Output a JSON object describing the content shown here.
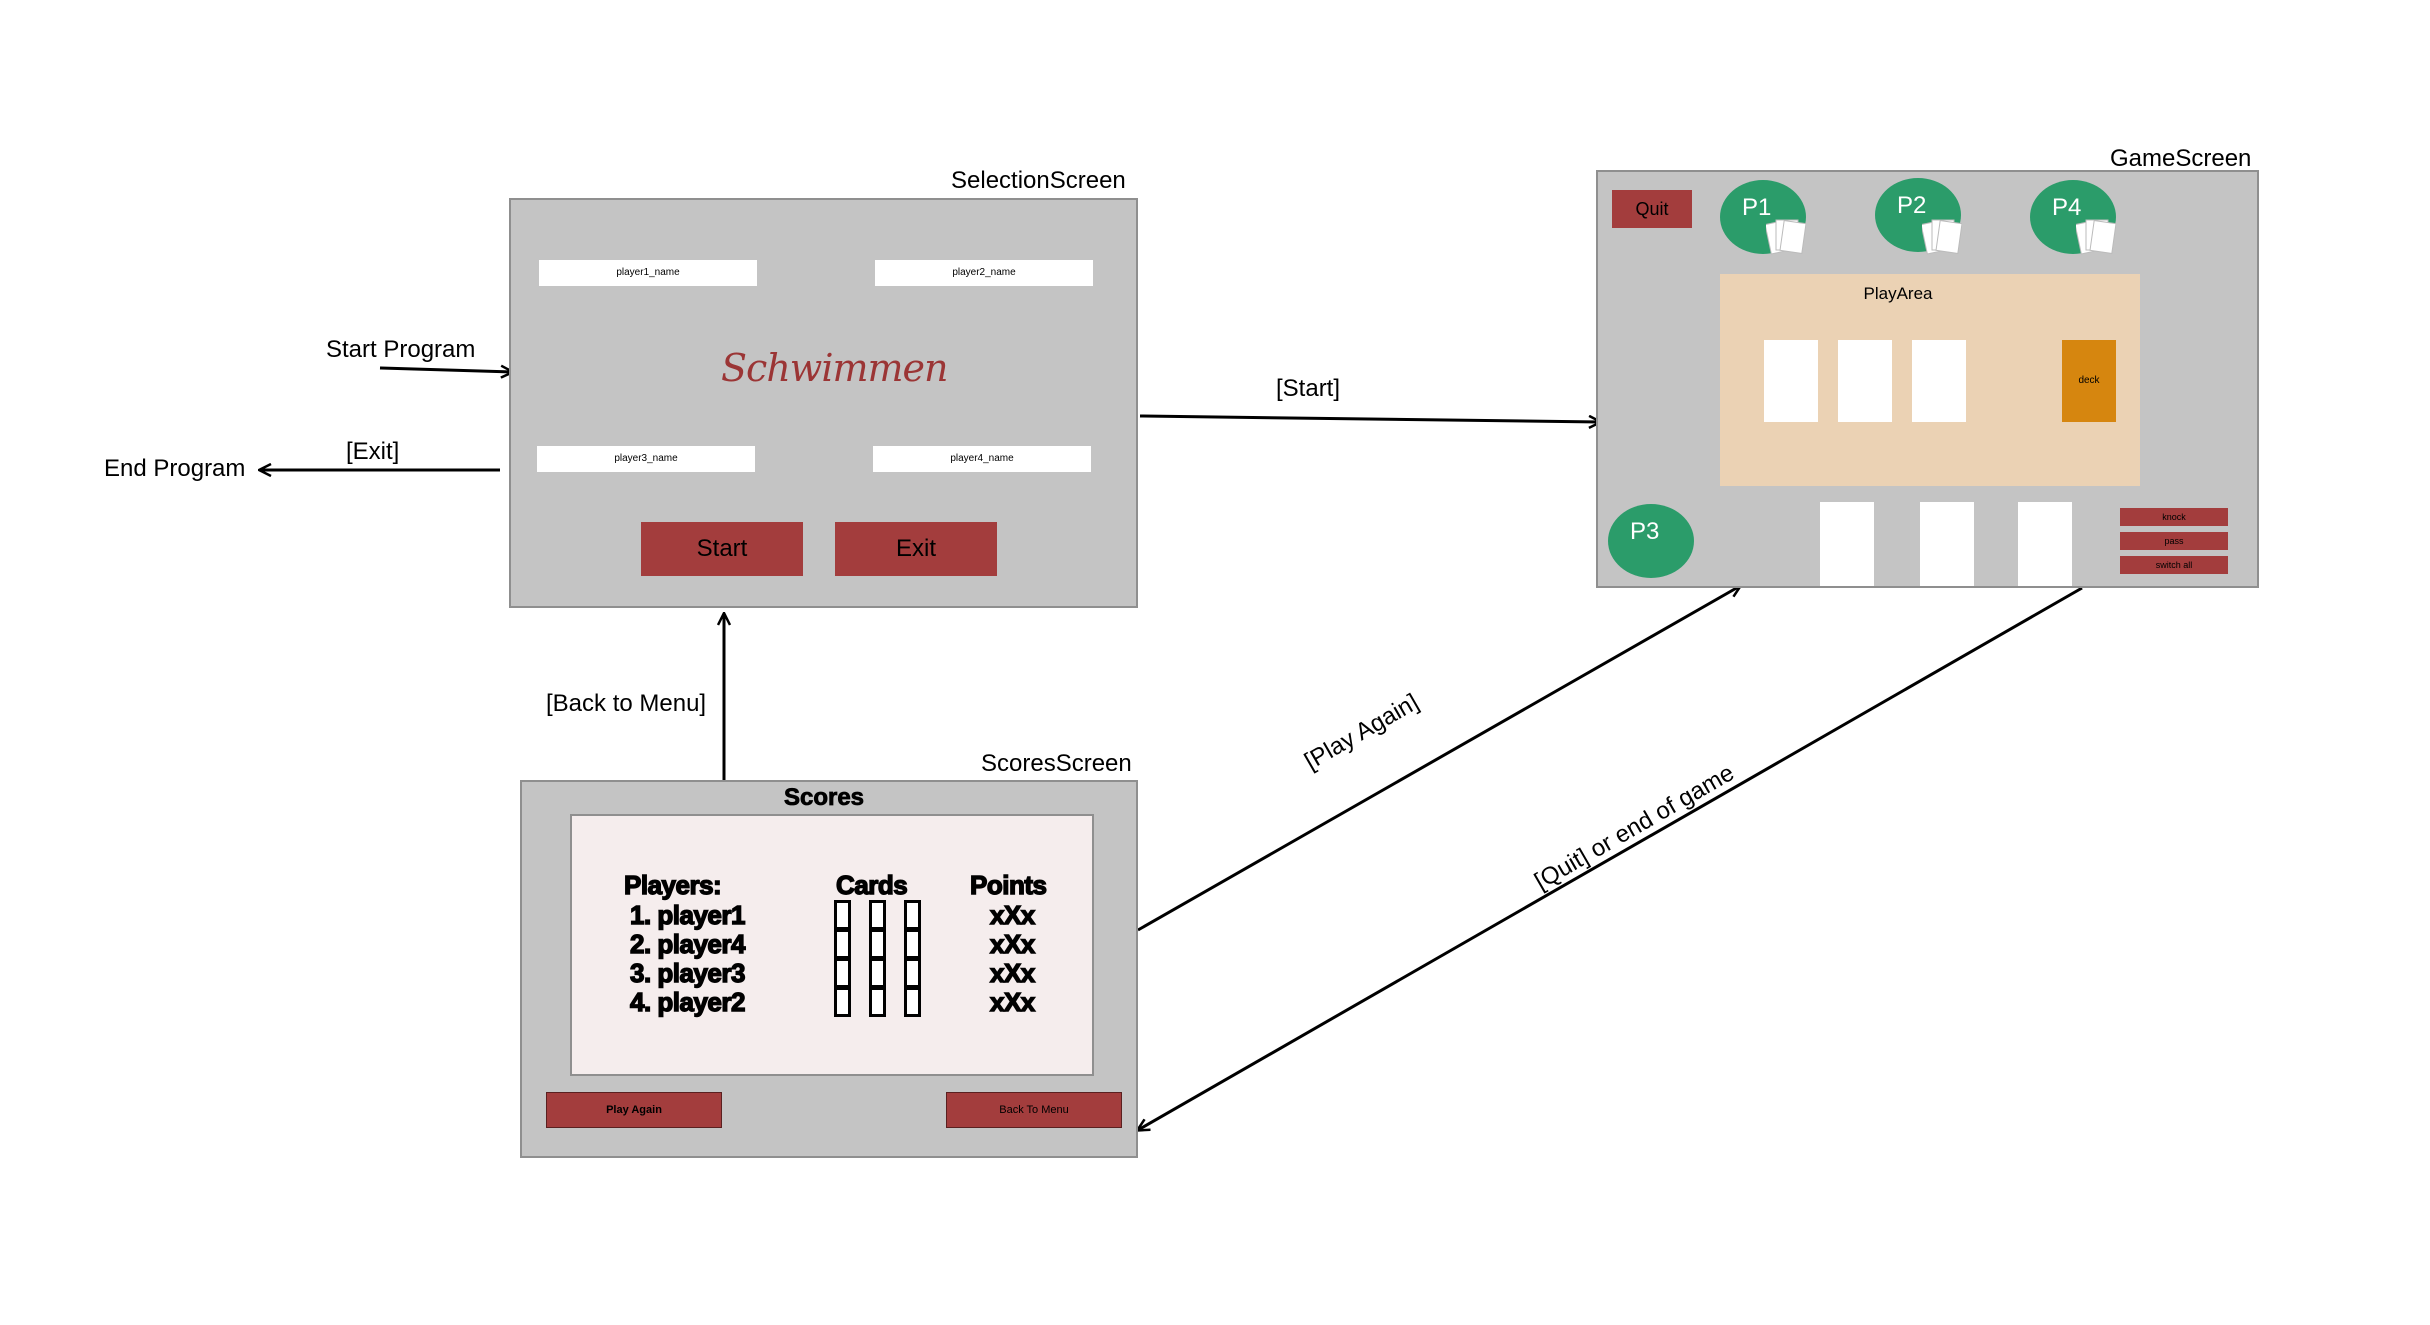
{
  "transitions": {
    "start_program": "Start Program",
    "end_program": "End Program",
    "exit": "[Exit]",
    "start": "[Start]",
    "back_to_menu": "[Back to Menu]",
    "play_again": "[Play Again]",
    "quit_or_end": "[Quit] or end of game"
  },
  "selection": {
    "title": "SelectionScreen",
    "logo": "Schwimmen",
    "fields": [
      "player1_name",
      "player2_name",
      "player3_name",
      "player4_name"
    ],
    "start_label": "Start",
    "exit_label": "Exit"
  },
  "game": {
    "title": "GameScreen",
    "quit_label": "Quit",
    "players": [
      "P1",
      "P2",
      "P4",
      "P3"
    ],
    "play_area_label": "PlayArea",
    "deck_label": "deck",
    "actions": [
      "knock",
      "pass",
      "switch all"
    ]
  },
  "scores": {
    "title": "ScoresScreen",
    "heading": "Scores",
    "columns": [
      "Players:",
      "Cards",
      "Points"
    ],
    "rows": [
      {
        "player": "1. player1",
        "points": "xXx"
      },
      {
        "player": "2. player4",
        "points": "xXx"
      },
      {
        "player": "3. player3",
        "points": "xXx"
      },
      {
        "player": "4. player2",
        "points": "xXx"
      }
    ],
    "play_again_label": "Play Again",
    "back_to_menu_label": "Back To Menu"
  },
  "colors": {
    "screen_bg": "#c4c4c4",
    "button_red": "#a33d3d",
    "player_green": "#2b9c6a",
    "play_area": "#ebd2b4",
    "deck_orange": "#d6860f",
    "scores_panel": "#f5eded"
  }
}
